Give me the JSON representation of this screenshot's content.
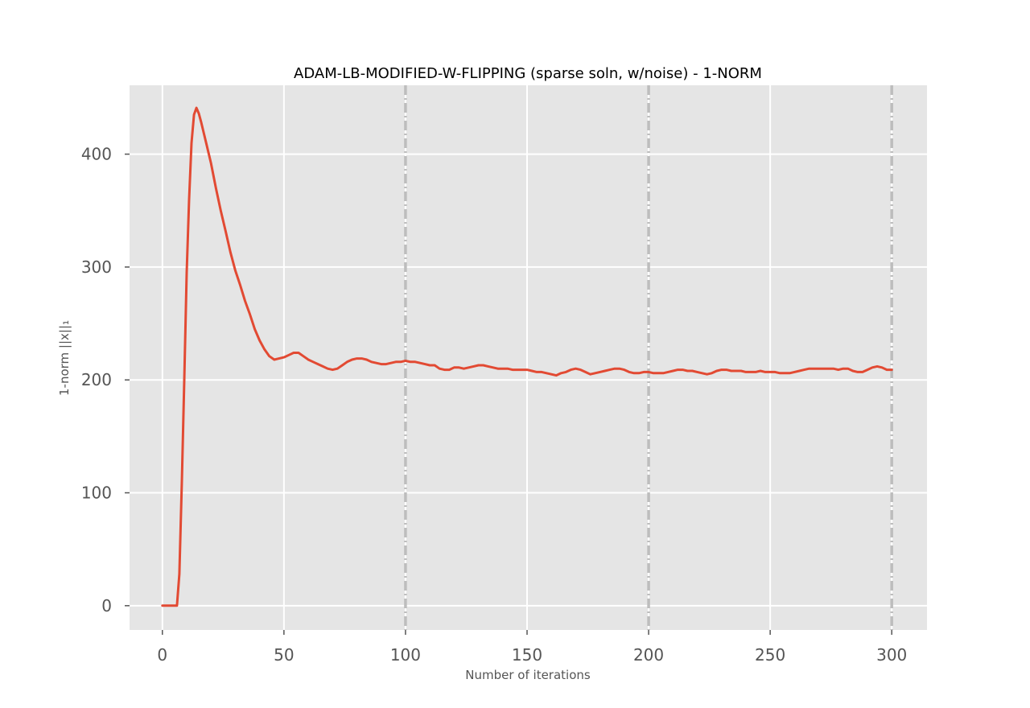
{
  "chart_data": {
    "type": "line",
    "title": "ADAM-LB-MODIFIED-W-FLIPPING (sparse soln, w/noise) - 1-NORM",
    "xlabel": "Number of iterations",
    "ylabel": "1-norm ||x||₁",
    "xlim": [
      -13.5,
      314.5
    ],
    "ylim": [
      -21.5,
      461
    ],
    "xticks": [
      0,
      50,
      100,
      150,
      200,
      250,
      300
    ],
    "yticks": [
      0,
      100,
      200,
      300,
      400
    ],
    "x_tick_labels": [
      "0",
      "50",
      "100",
      "150",
      "200",
      "250",
      "300"
    ],
    "y_tick_labels": [
      "0",
      "100",
      "200",
      "300",
      "400"
    ],
    "grid": true,
    "vlines": [
      100,
      200,
      300
    ],
    "series": [
      {
        "color": "#e24a33",
        "x": [
          0,
          2,
          4,
          6,
          7,
          8,
          9,
          10,
          11,
          12,
          13,
          14,
          15,
          16,
          18,
          20,
          22,
          24,
          26,
          28,
          30,
          32,
          34,
          36,
          38,
          40,
          42,
          44,
          46,
          48,
          50,
          52,
          54,
          56,
          58,
          60,
          62,
          64,
          66,
          68,
          70,
          72,
          74,
          76,
          78,
          80,
          82,
          84,
          86,
          88,
          90,
          92,
          94,
          96,
          98,
          100,
          102,
          104,
          106,
          108,
          110,
          112,
          114,
          116,
          118,
          120,
          122,
          124,
          126,
          128,
          130,
          132,
          134,
          136,
          138,
          140,
          142,
          144,
          146,
          148,
          150,
          152,
          154,
          156,
          158,
          160,
          162,
          164,
          166,
          168,
          170,
          172,
          174,
          176,
          178,
          180,
          182,
          184,
          186,
          188,
          190,
          192,
          194,
          196,
          198,
          200,
          202,
          204,
          206,
          208,
          210,
          212,
          214,
          216,
          218,
          220,
          222,
          224,
          226,
          228,
          230,
          232,
          234,
          236,
          238,
          240,
          242,
          244,
          246,
          248,
          250,
          252,
          254,
          256,
          258,
          260,
          262,
          264,
          266,
          268,
          270,
          272,
          274,
          276,
          278,
          280,
          282,
          284,
          286,
          288,
          290,
          292,
          294,
          296,
          298,
          300
        ],
        "y": [
          0,
          0,
          0,
          0,
          28,
          110,
          200,
          295,
          360,
          410,
          435,
          441,
          436,
          428,
          410,
          392,
          370,
          350,
          332,
          313,
          297,
          284,
          270,
          258,
          245,
          235,
          227,
          221,
          218,
          219,
          220,
          222,
          224,
          224,
          221,
          218,
          216,
          214,
          212,
          210,
          209,
          210,
          213,
          216,
          218,
          219,
          219,
          218,
          216,
          215,
          214,
          214,
          215,
          216,
          216,
          217,
          216,
          216,
          215,
          214,
          213,
          213,
          210,
          209,
          209,
          211,
          211,
          210,
          211,
          212,
          213,
          213,
          212,
          211,
          210,
          210,
          210,
          209,
          209,
          209,
          209,
          208,
          207,
          207,
          206,
          205,
          204,
          206,
          207,
          209,
          210,
          209,
          207,
          205,
          206,
          207,
          208,
          209,
          210,
          210,
          209,
          207,
          206,
          206,
          207,
          207,
          206,
          206,
          206,
          207,
          208,
          209,
          209,
          208,
          208,
          207,
          206,
          205,
          206,
          208,
          209,
          209,
          208,
          208,
          208,
          207,
          207,
          207,
          208,
          207,
          207,
          207,
          206,
          206,
          206,
          207,
          208,
          209,
          210,
          210,
          210,
          210,
          210,
          210,
          209,
          210,
          210,
          208,
          207,
          207,
          209,
          211,
          212,
          211,
          209,
          209
        ]
      }
    ]
  }
}
